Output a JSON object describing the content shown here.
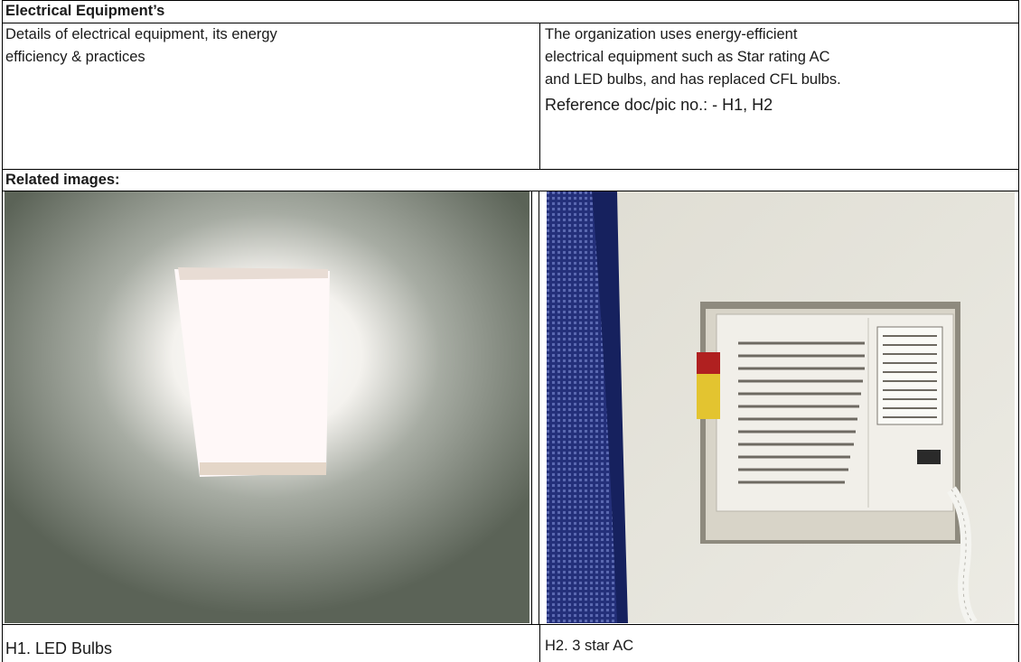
{
  "header": {
    "title": "Electrical Equipment’s"
  },
  "details": {
    "label": [
      "Details of electrical equipment, its energy",
      "efficiency & practices"
    ],
    "description": [
      "The organization uses energy-efficient",
      "electrical equipment such as Star rating AC",
      "and LED bulbs, and has replaced CFL bulbs."
    ],
    "reference": "Reference doc/pic no.: - H1, H2"
  },
  "images": {
    "title": "Related images:",
    "items": [
      {
        "caption": "H1. LED Bulbs"
      },
      {
        "caption": "H2. 3 star AC"
      }
    ]
  }
}
